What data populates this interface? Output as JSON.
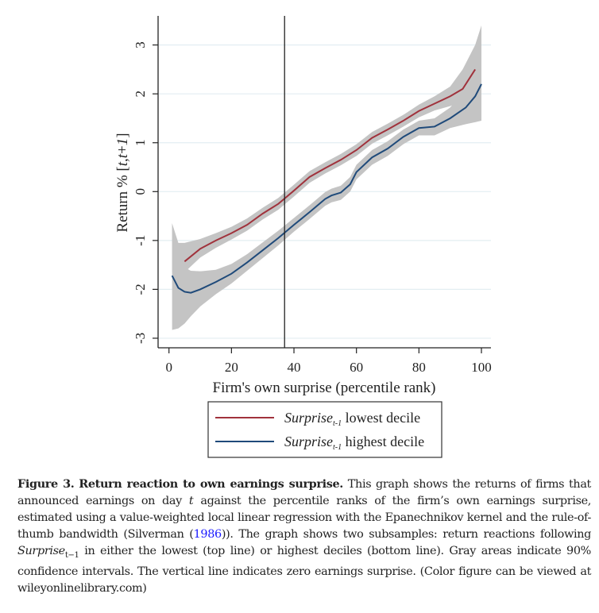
{
  "chart_data": {
    "type": "line",
    "xlabel": "Firm's own surprise (percentile rank)",
    "ylabel": "Return % [t,t+1]",
    "xlim": [
      -3,
      103
    ],
    "ylim": [
      -3.3,
      3.6
    ],
    "xticks": [
      "0",
      "20",
      "40",
      "60",
      "80",
      "100"
    ],
    "xtick_values": [
      0,
      20,
      40,
      60,
      80,
      100
    ],
    "yticks": [
      "-3",
      "-2",
      "-1",
      "0",
      "1",
      "2",
      "3"
    ],
    "ytick_values": [
      -3,
      -2,
      -1,
      0,
      1,
      2,
      3
    ],
    "grid": "horizontal",
    "vline_x": 37,
    "legend_position": "bottom",
    "series": [
      {
        "name": "lowest decile",
        "legend_main": "Surprise",
        "legend_sub": "t-1",
        "legend_rest": " lowest decile",
        "color": "#a0323c",
        "x": [
          5,
          10,
          15,
          20,
          25,
          30,
          35,
          40,
          45,
          50,
          55,
          60,
          65,
          70,
          75,
          80,
          85,
          90,
          94,
          98
        ],
        "y": [
          -1.43,
          -1.17,
          -1.0,
          -0.85,
          -0.68,
          -0.45,
          -0.25,
          0.02,
          0.3,
          0.48,
          0.65,
          0.85,
          1.1,
          1.27,
          1.45,
          1.65,
          1.8,
          1.95,
          2.1,
          2.5
        ],
        "ci_x": [
          1,
          3,
          5,
          10,
          15,
          20,
          25,
          30,
          35,
          40,
          45,
          50,
          55,
          60,
          65,
          70,
          75,
          80,
          85,
          90,
          94,
          98,
          100
        ],
        "ci_low": [
          -1.65,
          -1.65,
          -1.65,
          -1.35,
          -1.15,
          -0.98,
          -0.8,
          -0.57,
          -0.37,
          -0.1,
          0.18,
          0.37,
          0.54,
          0.73,
          0.98,
          1.15,
          1.33,
          1.52,
          1.66,
          1.75,
          1.85,
          2.05,
          2.2
        ],
        "ci_high": [
          -0.65,
          -1.05,
          -1.05,
          -0.97,
          -0.85,
          -0.72,
          -0.55,
          -0.33,
          -0.13,
          0.14,
          0.42,
          0.6,
          0.77,
          0.97,
          1.22,
          1.39,
          1.57,
          1.78,
          1.95,
          2.15,
          2.5,
          3.0,
          3.4
        ]
      },
      {
        "name": "highest decile",
        "legend_main": "Surprise",
        "legend_sub": "t-1",
        "legend_rest": " highest decile",
        "color": "#1f4a7a",
        "x": [
          1,
          3,
          5,
          7,
          10,
          15,
          20,
          25,
          30,
          35,
          40,
          45,
          50,
          52,
          55,
          58,
          60,
          65,
          70,
          75,
          80,
          85,
          90,
          95,
          98,
          100
        ],
        "y": [
          -1.72,
          -1.97,
          -2.05,
          -2.07,
          -2.0,
          -1.85,
          -1.68,
          -1.45,
          -1.2,
          -0.95,
          -0.68,
          -0.42,
          -0.15,
          -0.08,
          -0.02,
          0.15,
          0.4,
          0.7,
          0.88,
          1.12,
          1.3,
          1.33,
          1.5,
          1.72,
          1.95,
          2.2
        ],
        "ci_x": [
          1,
          3,
          5,
          7,
          10,
          15,
          20,
          25,
          30,
          35,
          40,
          45,
          50,
          52,
          55,
          58,
          60,
          65,
          70,
          75,
          80,
          85,
          90,
          95,
          98,
          100
        ],
        "ci_low": [
          -2.83,
          -2.8,
          -2.7,
          -2.55,
          -2.35,
          -2.1,
          -1.88,
          -1.62,
          -1.36,
          -1.1,
          -0.82,
          -0.56,
          -0.29,
          -0.22,
          -0.17,
          0.0,
          0.25,
          0.55,
          0.73,
          0.97,
          1.15,
          1.15,
          1.3,
          1.38,
          1.42,
          1.45
        ],
        "ci_high": [
          -0.65,
          -1.3,
          -1.55,
          -1.62,
          -1.63,
          -1.6,
          -1.48,
          -1.28,
          -1.04,
          -0.8,
          -0.54,
          -0.28,
          -0.01,
          0.06,
          0.12,
          0.3,
          0.55,
          0.85,
          1.03,
          1.27,
          1.45,
          1.5,
          1.72,
          2.1,
          2.6,
          3.0
        ]
      }
    ]
  },
  "caption": {
    "label": "Figure 3.",
    "title": "Return reaction to own earnings surprise.",
    "p1": " This graph shows the returns of firms that announced earnings on day ",
    "t": "t",
    "p2": " against the percentile ranks of the firm’s own earnings surprise, estimated using a value-weighted local linear regression with the Epanechnikov kernel and the rule-of-thumb bandwidth (Silverman (",
    "cite": "1986",
    "p3": ")). The graph shows two subsamples: return reactions following ",
    "surprise": "Surprise",
    "sub": "t−1",
    "p4": " in either the lowest (top line) or highest deciles (bottom line). Gray areas indicate 90% confidence intervals. The vertical line indicates zero earnings surprise. (Color figure can be viewed at wileyonlinelibrary.com)"
  }
}
